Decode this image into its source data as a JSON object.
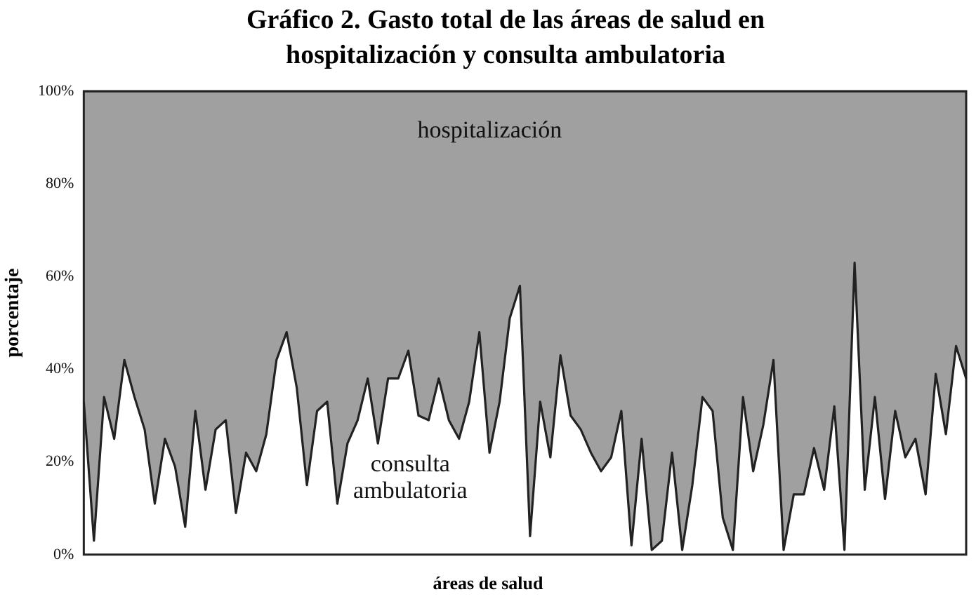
{
  "chart_data": {
    "type": "area",
    "title": "Gráfico 2. Gasto total de las áreas de salud en hospitalización y consulta ambulatoria",
    "xlabel": "áreas de salud",
    "ylabel": "porcentaje",
    "stacked": true,
    "grid": false,
    "legend": false,
    "tick_labels": "y",
    "categories": [
      null,
      null,
      null,
      null,
      null,
      null,
      null,
      null,
      null,
      null,
      null,
      null,
      null,
      null,
      null,
      null,
      null,
      null,
      null,
      null,
      null,
      null,
      null,
      null,
      null,
      null,
      null,
      null,
      null,
      null,
      null,
      null,
      null,
      null,
      null,
      null,
      null,
      null,
      null,
      null,
      null,
      null,
      null,
      null,
      null,
      null,
      null,
      null,
      null,
      null,
      null,
      null,
      null,
      null,
      null,
      null,
      null,
      null,
      null,
      null,
      null,
      null,
      null,
      null,
      null,
      null,
      null,
      null,
      null,
      null,
      null,
      null,
      null,
      null,
      null,
      null,
      null,
      null,
      null,
      null,
      null,
      null,
      null,
      null,
      null,
      null,
      null,
      null
    ],
    "series": [
      {
        "name": "consulta ambulatoria",
        "color": "#ffffff",
        "values": [
          33,
          3,
          34,
          25,
          42,
          34,
          27,
          11,
          25,
          19,
          6,
          31,
          14,
          27,
          29,
          9,
          22,
          18,
          26,
          42,
          48,
          36,
          15,
          31,
          33,
          11,
          24,
          29,
          38,
          24,
          38,
          38,
          44,
          30,
          29,
          38,
          29,
          25,
          33,
          48,
          22,
          33,
          51,
          58,
          4,
          33,
          21,
          43,
          30,
          27,
          22,
          18,
          21,
          31,
          2,
          25,
          1,
          3,
          22,
          1,
          15,
          34,
          31,
          8,
          1,
          34,
          18,
          28,
          42,
          1,
          13,
          13,
          23,
          14,
          32,
          1,
          63,
          14,
          34,
          12,
          31,
          21,
          25,
          13,
          39,
          26,
          45,
          38
        ]
      },
      {
        "name": "hospitalización",
        "color": "#a0a0a0",
        "values": [
          67,
          97,
          66,
          75,
          58,
          66,
          73,
          89,
          75,
          81,
          94,
          69,
          86,
          73,
          71,
          91,
          78,
          82,
          74,
          58,
          52,
          64,
          85,
          69,
          67,
          89,
          76,
          71,
          62,
          76,
          62,
          62,
          56,
          70,
          71,
          62,
          71,
          75,
          67,
          52,
          78,
          67,
          49,
          42,
          96,
          67,
          79,
          57,
          70,
          73,
          78,
          82,
          79,
          69,
          98,
          75,
          99,
          97,
          78,
          99,
          85,
          66,
          69,
          92,
          99,
          66,
          82,
          72,
          58,
          99,
          87,
          87,
          77,
          86,
          68,
          99,
          37,
          86,
          66,
          88,
          69,
          79,
          75,
          87,
          61,
          74,
          55,
          62
        ]
      }
    ],
    "ylim": [
      0,
      100
    ],
    "yticks": [
      {
        "value": 0,
        "label": "0%"
      },
      {
        "value": 20,
        "label": "20%"
      },
      {
        "value": 40,
        "label": "40%"
      },
      {
        "value": 60,
        "label": "60%"
      },
      {
        "value": 80,
        "label": "80%"
      },
      {
        "value": 100,
        "label": "100%"
      }
    ]
  }
}
